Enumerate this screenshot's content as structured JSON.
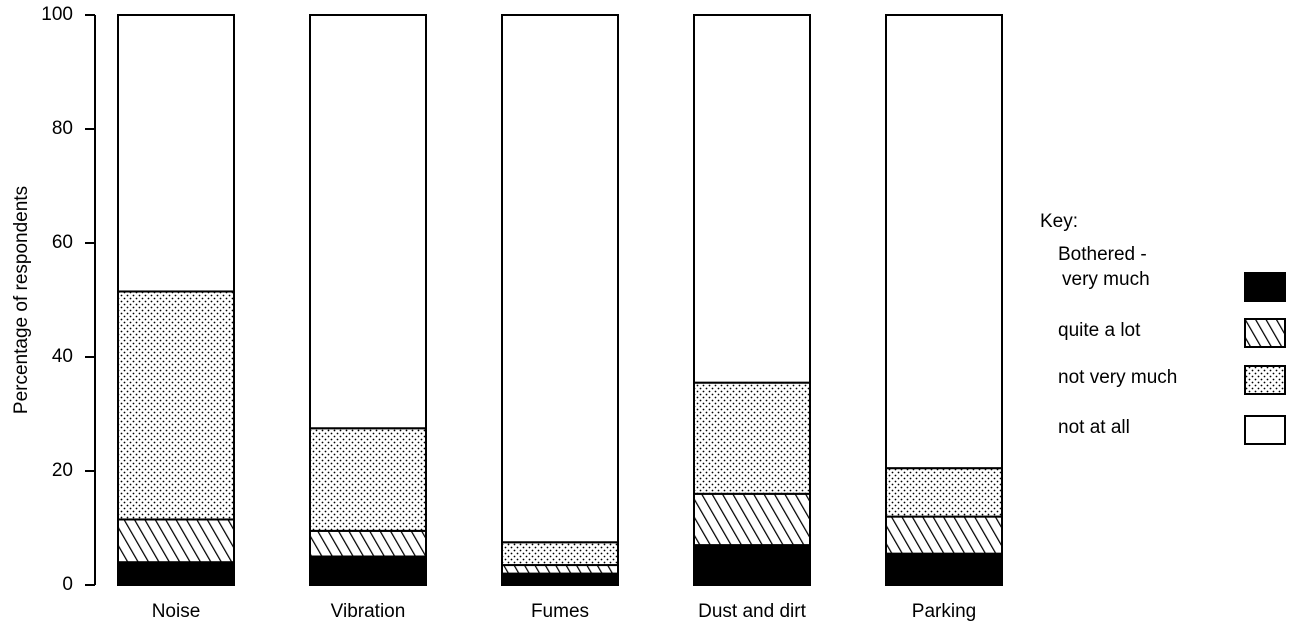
{
  "chart_data": {
    "type": "stacked_bar",
    "y_label": "Percentage of respondents",
    "categories": [
      "Noise",
      "Vibration",
      "Fumes",
      "Dust and dirt",
      "Parking"
    ],
    "legend_title": "Key:",
    "legend_prefix": "Bothered -",
    "legend_position": "right",
    "series": [
      {
        "name": "very much",
        "color": "#000000",
        "pattern": "solid",
        "values": [
          4,
          5,
          2,
          7,
          5.5
        ]
      },
      {
        "name": "quite a lot",
        "color": "#000000",
        "pattern": "hatch",
        "values": [
          7.5,
          4.5,
          1.5,
          9,
          6.5
        ]
      },
      {
        "name": "not very much",
        "color": "#000000",
        "pattern": "dots",
        "values": [
          40,
          18,
          4,
          19.5,
          8.5
        ]
      },
      {
        "name": "not at all",
        "color": "#000000",
        "pattern": "none",
        "values": [
          48.5,
          72.5,
          92.5,
          64.5,
          79.5
        ]
      }
    ],
    "ylim": [
      0,
      100
    ],
    "yticks": [
      0,
      20,
      40,
      60,
      80,
      100
    ],
    "grid": false
  }
}
